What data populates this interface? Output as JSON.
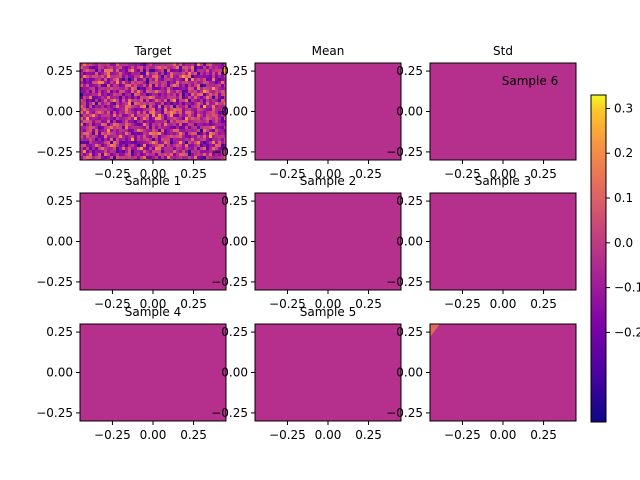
{
  "chart_data": {
    "type": "heatmap",
    "layout": "3x3 grid of panels with shared colorbar on the right",
    "colormap": "plasma",
    "x_ticks": [
      "−0.25",
      "0.00",
      "0.25"
    ],
    "x_tick_values": [
      -0.25,
      0,
      0.25
    ],
    "y_ticks": [
      "0.25",
      "0.00",
      "−0.25"
    ],
    "y_tick_values": [
      0.25,
      0,
      -0.25
    ],
    "xlim": [
      -0.45,
      0.45
    ],
    "ylim": [
      -0.3,
      0.3
    ],
    "colorbar": {
      "range": [
        -0.4,
        0.33
      ],
      "ticks": [
        "0.3",
        "0.2",
        "0.1",
        "0.0",
        "−0.1",
        "−0.2"
      ],
      "tick_values": [
        0.3,
        0.2,
        0.1,
        0.0,
        -0.1,
        -0.2
      ]
    },
    "uniform_panel_color": "#b52f8c",
    "panels": [
      {
        "title": "Target",
        "content": "noise"
      },
      {
        "title": "Mean",
        "content": "uniform"
      },
      {
        "title": "Std",
        "content": "uniform",
        "annotation": "Sample 6"
      },
      {
        "title": "Sample 1",
        "content": "uniform"
      },
      {
        "title": "Sample 2",
        "content": "uniform"
      },
      {
        "title": "Sample 3",
        "content": "uniform"
      },
      {
        "title": "Sample 4",
        "content": "uniform"
      },
      {
        "title": "Sample 5",
        "content": "uniform"
      },
      {
        "title": "",
        "content": "uniform_with_corner_patch",
        "patch_color": "#e06a5c"
      }
    ]
  }
}
